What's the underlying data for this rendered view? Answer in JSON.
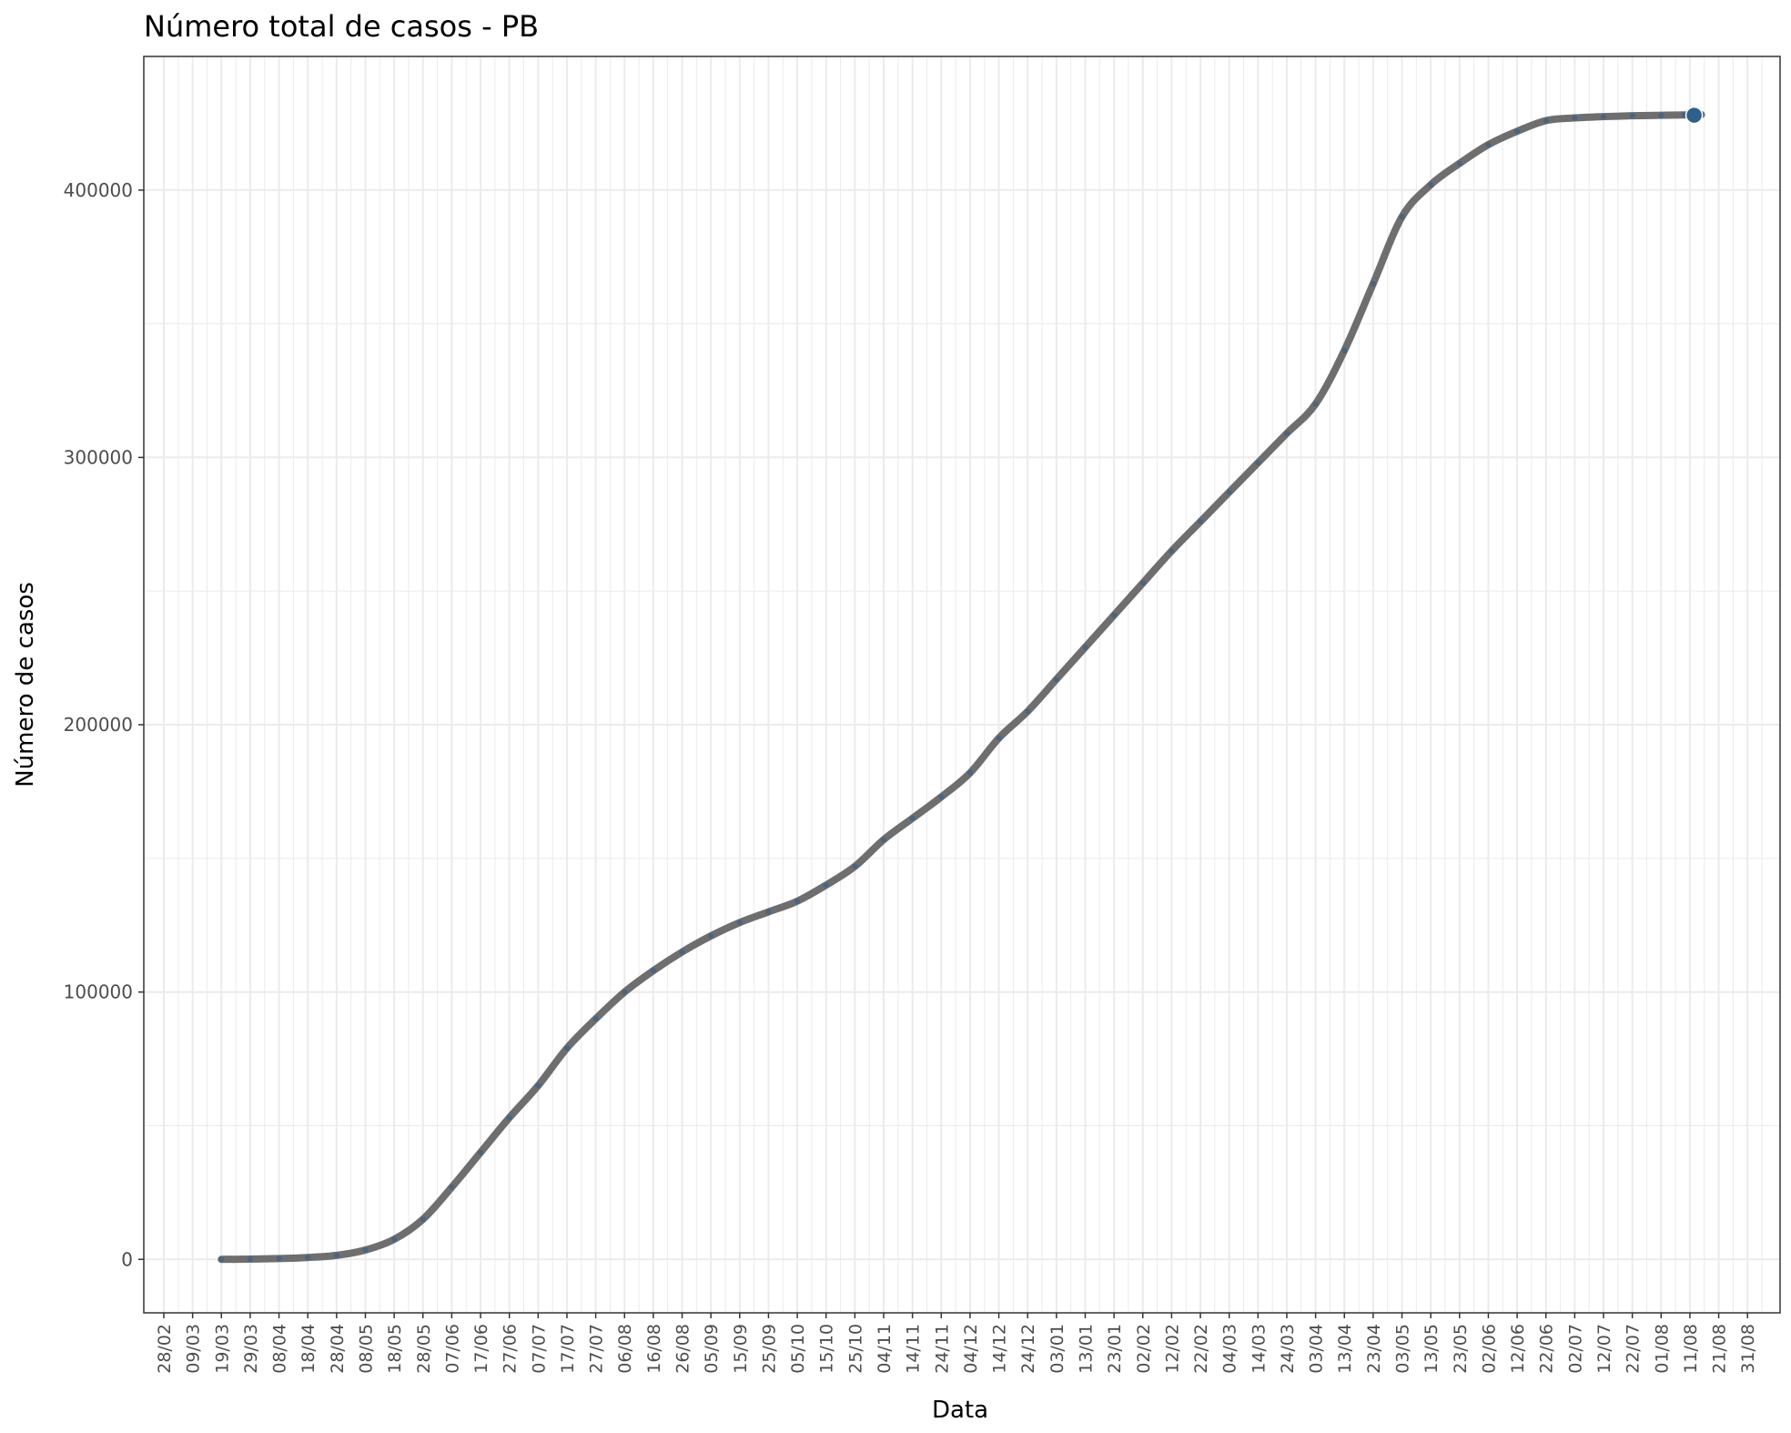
{
  "chart_data": {
    "type": "line",
    "title": "Número total de casos - PB",
    "xlabel": "Data",
    "ylabel": "Número de casos",
    "x_tick_labels": [
      "28/02",
      "09/03",
      "19/03",
      "29/03",
      "08/04",
      "18/04",
      "28/04",
      "08/05",
      "18/05",
      "28/05",
      "07/06",
      "17/06",
      "27/06",
      "07/07",
      "17/07",
      "27/07",
      "06/08",
      "16/08",
      "26/08",
      "05/09",
      "15/09",
      "25/09",
      "05/10",
      "15/10",
      "25/10",
      "04/11",
      "14/11",
      "24/11",
      "04/12",
      "14/12",
      "24/12",
      "03/01",
      "13/01",
      "23/01",
      "02/02",
      "12/02",
      "22/02",
      "04/03",
      "14/03",
      "24/03",
      "03/04",
      "13/04",
      "23/04",
      "03/05",
      "13/05",
      "23/05",
      "02/06",
      "12/06",
      "22/06",
      "02/07",
      "12/07",
      "22/07",
      "01/08",
      "11/08",
      "21/08",
      "31/08"
    ],
    "y_ticks": [
      0,
      100000,
      200000,
      300000,
      400000
    ],
    "y_tick_labels": [
      "0",
      "100000",
      "200000",
      "300000",
      "400000"
    ],
    "ylim": [
      -20000,
      450000
    ],
    "grid": true,
    "legend": "none",
    "colors": {
      "line": "#6e6e6e",
      "points": "#2f5f8a",
      "grid": "#ebebeb",
      "panel_border": "#333333"
    },
    "series": [
      {
        "day_index": [
          0,
          10,
          20,
          30,
          40,
          50,
          60,
          70,
          80,
          90,
          100,
          110,
          120,
          130,
          140,
          150,
          160,
          170,
          180,
          190,
          200,
          210,
          220,
          230,
          240,
          250,
          260,
          270,
          280,
          290,
          300,
          310,
          320,
          330,
          340,
          350,
          360,
          370,
          380,
          390,
          400,
          410,
          420,
          430,
          440,
          450,
          460,
          470,
          480,
          490,
          500,
          508,
          514
        ],
        "y": [
          0,
          100,
          300,
          700,
          1500,
          3500,
          7500,
          15000,
          27000,
          40000,
          53000,
          65000,
          79000,
          90000,
          100000,
          108000,
          115000,
          121000,
          126000,
          130000,
          134000,
          140000,
          147000,
          157000,
          165000,
          173000,
          182000,
          195000,
          205000,
          217000,
          229000,
          241000,
          253000,
          265000,
          276000,
          287000,
          298000,
          309000,
          320000,
          340000,
          365000,
          390000,
          402000,
          410000,
          417000,
          422000,
          426000,
          427000,
          427500,
          427800,
          428000,
          428100,
          428200
        ]
      }
    ],
    "highlight_point": {
      "y": 428000
    }
  }
}
